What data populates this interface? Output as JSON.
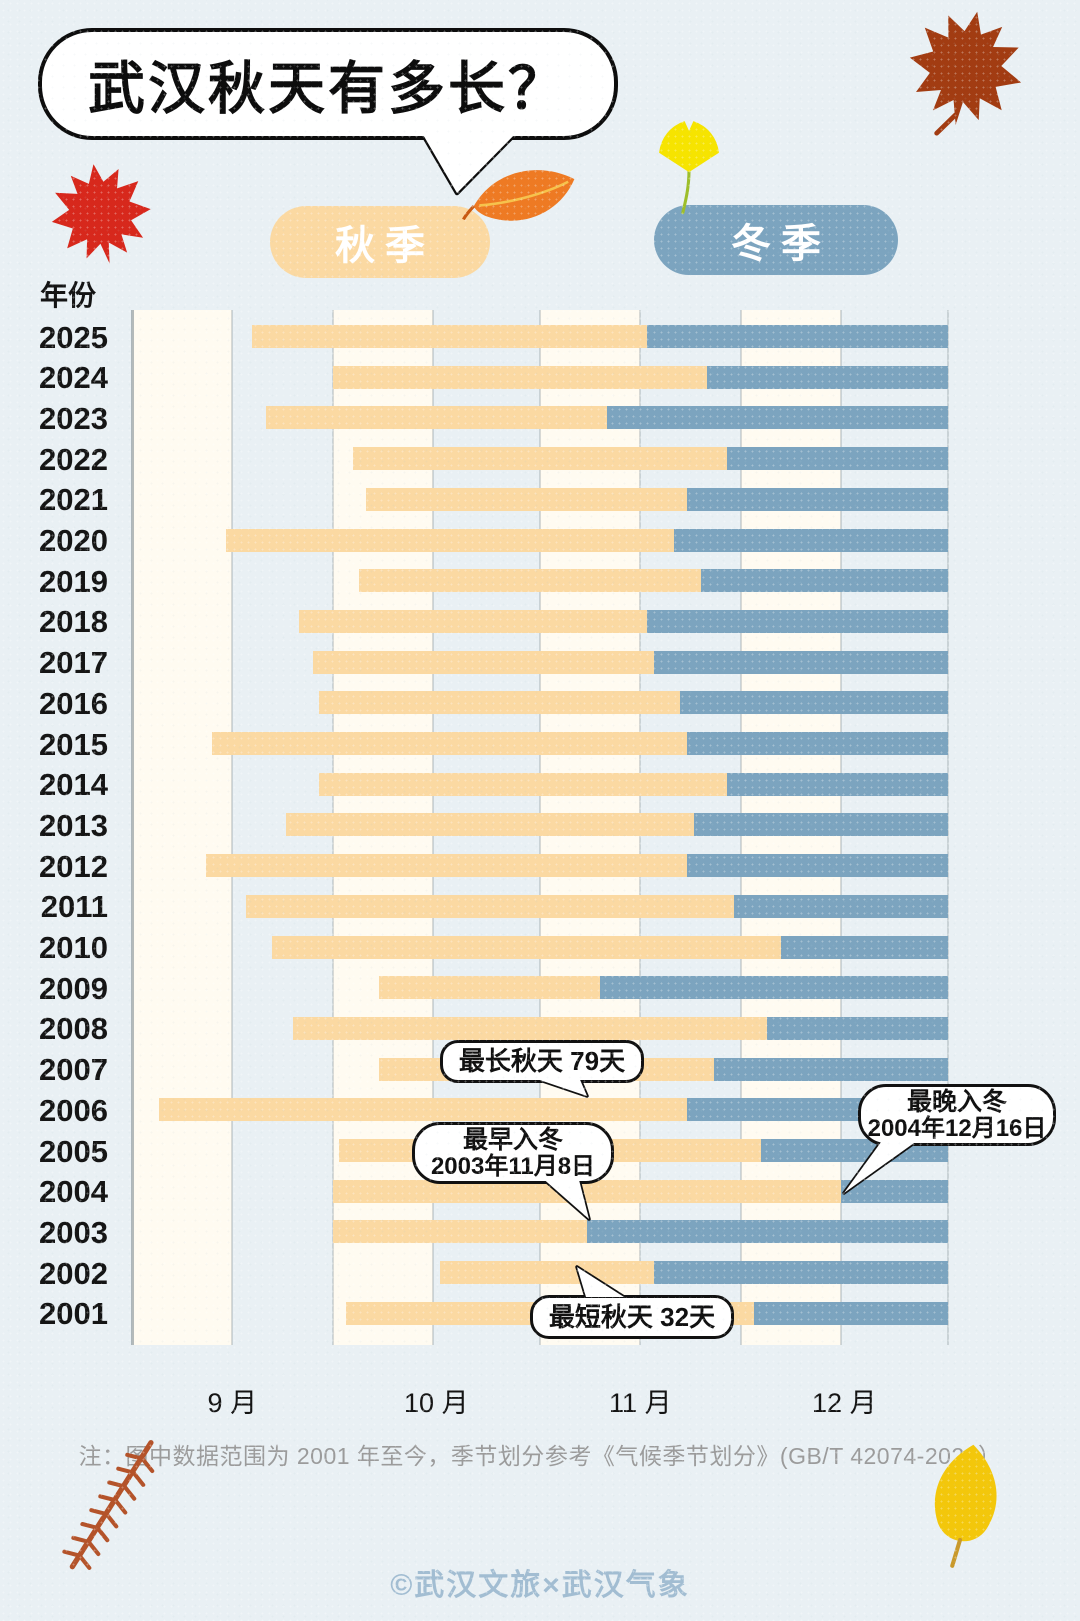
{
  "header": {
    "title": "武汉秋天有多长？"
  },
  "legend": {
    "autumn": {
      "label": "秋季",
      "color": "#FBD9A2"
    },
    "winter": {
      "label": "冬季",
      "color": "#7CA4BF"
    }
  },
  "chart_data": {
    "type": "bar",
    "subtype": "stacked-horizontal-season-gantt",
    "title": "武汉秋天有多长？",
    "ylabel": "年份",
    "x_axis": {
      "start": "9月1日",
      "end": "12月31日",
      "tick_labels": [
        "9 月",
        "10 月",
        "11 月",
        "12 月"
      ],
      "note": "background stripes alternate every half month"
    },
    "legend": [
      "秋季",
      "冬季"
    ],
    "series_colors": {
      "秋季": "#FBD9A2",
      "冬季": "#7CA4BF"
    },
    "rows": [
      {
        "year": "2025",
        "autumn_start": "9月19日",
        "winter_start": "11月17日",
        "autumn_start_day": 18,
        "winter_start_day": 77
      },
      {
        "year": "2024",
        "autumn_start": "10月1日",
        "winter_start": "11月26日",
        "autumn_start_day": 30,
        "winter_start_day": 86
      },
      {
        "year": "2023",
        "autumn_start": "9月21日",
        "winter_start": "11月11日",
        "autumn_start_day": 20,
        "winter_start_day": 71
      },
      {
        "year": "2022",
        "autumn_start": "10月4日",
        "winter_start": "11月29日",
        "autumn_start_day": 33,
        "winter_start_day": 89
      },
      {
        "year": "2021",
        "autumn_start": "10月6日",
        "winter_start": "11月23日",
        "autumn_start_day": 35,
        "winter_start_day": 83
      },
      {
        "year": "2020",
        "autumn_start": "9月15日",
        "winter_start": "11月21日",
        "autumn_start_day": 14,
        "winter_start_day": 81
      },
      {
        "year": "2019",
        "autumn_start": "10月5日",
        "winter_start": "11月25日",
        "autumn_start_day": 34,
        "winter_start_day": 85
      },
      {
        "year": "2018",
        "autumn_start": "9月26日",
        "winter_start": "11月17日",
        "autumn_start_day": 25,
        "winter_start_day": 77
      },
      {
        "year": "2017",
        "autumn_start": "9月28日",
        "winter_start": "11月18日",
        "autumn_start_day": 27,
        "winter_start_day": 78
      },
      {
        "year": "2016",
        "autumn_start": "9月29日",
        "winter_start": "11月22日",
        "autumn_start_day": 28,
        "winter_start_day": 82
      },
      {
        "year": "2015",
        "autumn_start": "9月13日",
        "winter_start": "11月23日",
        "autumn_start_day": 12,
        "winter_start_day": 83
      },
      {
        "year": "2014",
        "autumn_start": "9月29日",
        "winter_start": "11月29日",
        "autumn_start_day": 28,
        "winter_start_day": 89
      },
      {
        "year": "2013",
        "autumn_start": "9月24日",
        "winter_start": "11月24日",
        "autumn_start_day": 23,
        "winter_start_day": 84
      },
      {
        "year": "2012",
        "autumn_start": "9月12日",
        "winter_start": "11月23日",
        "autumn_start_day": 11,
        "winter_start_day": 83
      },
      {
        "year": "2011",
        "autumn_start": "9月18日",
        "winter_start": "11月30日",
        "autumn_start_day": 17,
        "winter_start_day": 90
      },
      {
        "year": "2010",
        "autumn_start": "9月22日",
        "winter_start": "12月7日",
        "autumn_start_day": 21,
        "winter_start_day": 97
      },
      {
        "year": "2009",
        "autumn_start": "10月8日",
        "winter_start": "11月10日",
        "autumn_start_day": 37,
        "winter_start_day": 70
      },
      {
        "year": "2008",
        "autumn_start": "9月25日",
        "winter_start": "12月5日",
        "autumn_start_day": 24,
        "winter_start_day": 95
      },
      {
        "year": "2007",
        "autumn_start": "10月8日",
        "winter_start": "11月27日",
        "autumn_start_day": 37,
        "winter_start_day": 87
      },
      {
        "year": "2006",
        "autumn_start": "9月5日",
        "winter_start": "11月23日",
        "autumn_start_day": 4,
        "winter_start_day": 83
      },
      {
        "year": "2005",
        "autumn_start": "10月2日",
        "winter_start": "12月4日",
        "autumn_start_day": 31,
        "winter_start_day": 94
      },
      {
        "year": "2004",
        "autumn_start": "10月1日",
        "winter_start": "12月16日",
        "autumn_start_day": 30,
        "winter_start_day": 106
      },
      {
        "year": "2003",
        "autumn_start": "10月1日",
        "winter_start": "11月8日",
        "autumn_start_day": 30,
        "winter_start_day": 68
      },
      {
        "year": "2002",
        "autumn_start": "10月17日",
        "winter_start": "11月18日",
        "autumn_start_day": 46,
        "winter_start_day": 78
      },
      {
        "year": "2001",
        "autumn_start": "10月3日",
        "winter_start": "12月3日",
        "autumn_start_day": 32,
        "winter_start_day": 93
      }
    ],
    "annotations": [
      {
        "id": "longest-autumn",
        "lines": [
          "最长秋天  79天"
        ],
        "target_year": "2006"
      },
      {
        "id": "earliest-winter",
        "lines": [
          "最早入冬",
          "2003年11月8日"
        ],
        "target_year": "2003"
      },
      {
        "id": "latest-winter",
        "lines": [
          "最晚入冬",
          "2004年12月16日"
        ],
        "target_year": "2004"
      },
      {
        "id": "shortest-autumn",
        "lines": [
          "最短秋天  32天"
        ],
        "target_year": "2002"
      }
    ]
  },
  "footnote": "注：图中数据范围为 2001 年至今，季节划分参考《气候季节划分》(GB/T 42074-2022）",
  "watermark": "©武汉文旅×武汉气象",
  "icons": {
    "top_left": "red-maple-leaf",
    "title_side": "orange-leaf",
    "above_winter_legend": "yellow-ginkgo-leaf",
    "top_right": "brown-maple-leaf",
    "bottom_left": "redwood-twig",
    "bottom_right": "yellow-leaf"
  }
}
